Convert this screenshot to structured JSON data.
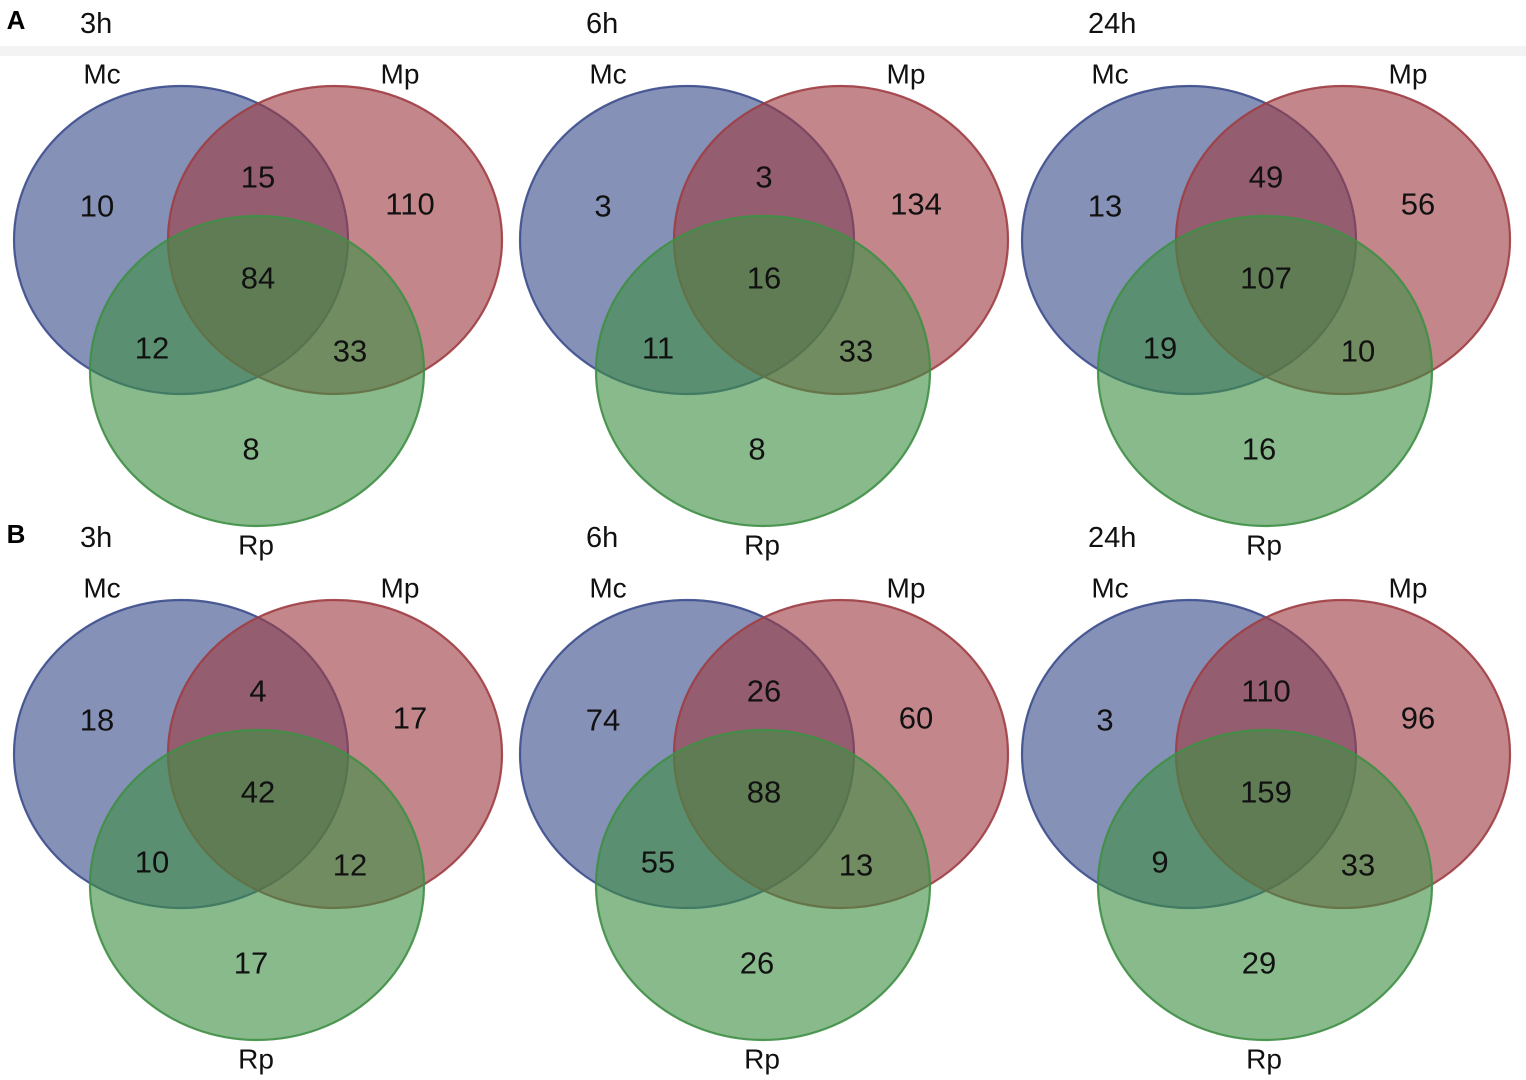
{
  "set_names": {
    "mc": "Mc",
    "mp": "Mp",
    "rp": "Rp"
  },
  "colors": {
    "mc": "#3b4d8c",
    "mp": "#9e3d43",
    "rp": "#3f8f45"
  },
  "panels": [
    {
      "letter": "A",
      "diagrams": [
        {
          "time": "3h",
          "counts": {
            "mc_only": "10",
            "mp_only": "110",
            "rp_only": "8",
            "mc_mp": "15",
            "mc_rp": "12",
            "mp_rp": "33",
            "all": "84"
          }
        },
        {
          "time": "6h",
          "counts": {
            "mc_only": "3",
            "mp_only": "134",
            "rp_only": "8",
            "mc_mp": "3",
            "mc_rp": "11",
            "mp_rp": "33",
            "all": "16"
          }
        },
        {
          "time": "24h",
          "counts": {
            "mc_only": "13",
            "mp_only": "56",
            "rp_only": "16",
            "mc_mp": "49",
            "mc_rp": "19",
            "mp_rp": "10",
            "all": "107"
          }
        }
      ]
    },
    {
      "letter": "B",
      "diagrams": [
        {
          "time": "3h",
          "counts": {
            "mc_only": "18",
            "mp_only": "17",
            "rp_only": "17",
            "mc_mp": "4",
            "mc_rp": "10",
            "mp_rp": "12",
            "all": "42"
          }
        },
        {
          "time": "6h",
          "counts": {
            "mc_only": "74",
            "mp_only": "60",
            "rp_only": "26",
            "mc_mp": "26",
            "mc_rp": "55",
            "mp_rp": "13",
            "all": "88"
          }
        },
        {
          "time": "24h",
          "counts": {
            "mc_only": "3",
            "mp_only": "96",
            "rp_only": "29",
            "mc_mp": "110",
            "mc_rp": "9",
            "mp_rp": "33",
            "all": "159"
          }
        }
      ]
    }
  ]
}
